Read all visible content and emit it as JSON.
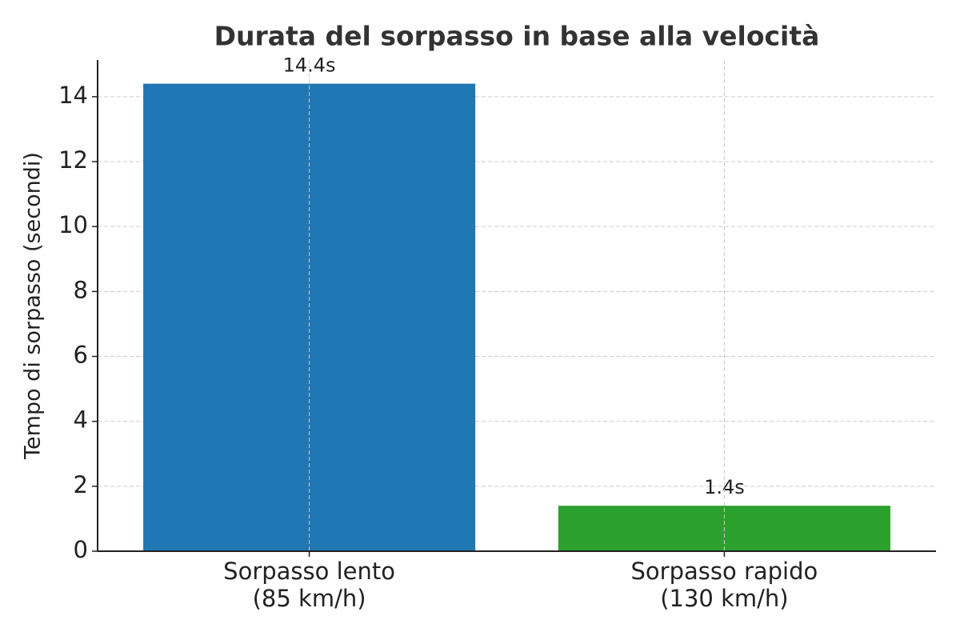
{
  "chart_data": {
    "type": "bar",
    "title": "Durata del sorpasso in base alla velocità",
    "y_label": "Tempo di sorpasso (secondi)",
    "categories": [
      "Sorpasso lento\n(85 km/h)",
      "Sorpasso rapido\n(130 km/h)"
    ],
    "values": [
      14.4,
      1.4
    ],
    "value_labels": [
      "14.4s",
      "1.4s"
    ],
    "colors": [
      "#1f77b4",
      "#2ca02c"
    ],
    "ylim": [
      0,
      15.13
    ],
    "yticks": [
      0,
      2,
      4,
      6,
      8,
      10,
      12,
      14
    ],
    "grid": true
  }
}
